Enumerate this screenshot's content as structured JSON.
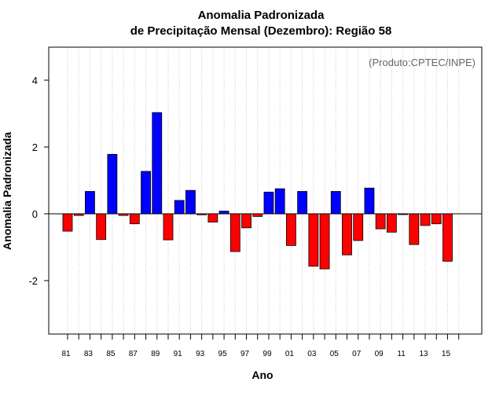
{
  "chart_data": {
    "type": "bar",
    "title_line1": "Anomalia Padronizada",
    "title_line2": "de Precipitação Mensal (Dezembro): Região 58",
    "xlabel": "Ano",
    "ylabel": "Anomalia Padronizada",
    "credit": "(Produto:CPTEC/INPE)",
    "ylim": [
      -3.6,
      5.0
    ],
    "yticks": [
      -2,
      0,
      2,
      4
    ],
    "grid": "vertical dotted",
    "colors": {
      "positive": "#0000ff",
      "negative": "#ff0000",
      "grid": "#c8c8c8"
    },
    "categories": [
      "1981",
      "1982",
      "1983",
      "1984",
      "1985",
      "1986",
      "1987",
      "1988",
      "1989",
      "1990",
      "1991",
      "1992",
      "1993",
      "1994",
      "1995",
      "1996",
      "1997",
      "1998",
      "1999",
      "2000",
      "2001",
      "2002",
      "2003",
      "2004",
      "2005",
      "2006",
      "2007",
      "2008",
      "2009",
      "2010",
      "2011",
      "2012",
      "2013",
      "2014",
      "2015"
    ],
    "values": [
      -0.52,
      -0.05,
      0.67,
      -0.77,
      1.78,
      -0.05,
      -0.3,
      1.27,
      3.03,
      -0.78,
      0.4,
      0.7,
      -0.03,
      -0.25,
      0.08,
      -1.13,
      -0.42,
      -0.08,
      0.65,
      0.75,
      -0.95,
      0.67,
      -1.57,
      -1.65,
      0.67,
      -1.23,
      -0.8,
      0.77,
      -0.45,
      -0.55,
      -0.02,
      -0.92,
      -0.35,
      -0.3,
      -1.42
    ],
    "xtick_labels": [
      "81",
      "83",
      "85",
      "87",
      "89",
      "91",
      "93",
      "95",
      "97",
      "99",
      "01",
      "03",
      "05",
      "07",
      "09",
      "11",
      "13",
      "15"
    ],
    "xtick_years": [
      1981,
      1983,
      1985,
      1987,
      1989,
      1991,
      1993,
      1995,
      1997,
      1999,
      2001,
      2003,
      2005,
      2007,
      2009,
      2011,
      2013,
      2015
    ],
    "x_minor_tick_years": [
      1981,
      1982,
      1983,
      1984,
      1985,
      1986,
      1987,
      1988,
      1989,
      1990,
      1991,
      1992,
      1993,
      1994,
      1995,
      1996,
      1997,
      1998,
      1999,
      2000,
      2001,
      2002,
      2003,
      2004,
      2005,
      2006,
      2007,
      2008,
      2009,
      2010,
      2011,
      2012,
      2013,
      2014,
      2015,
      2016
    ]
  }
}
